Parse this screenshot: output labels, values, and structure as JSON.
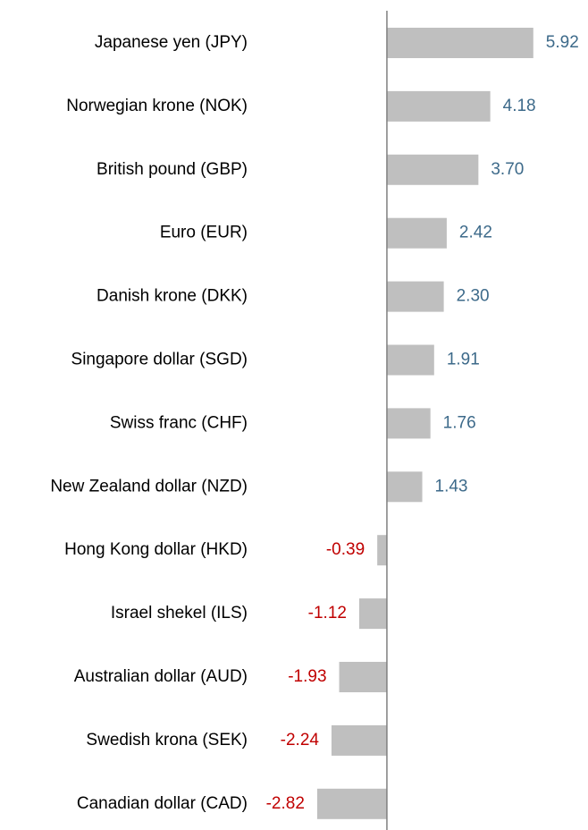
{
  "chart_data": {
    "type": "bar",
    "orientation": "horizontal",
    "categories": [
      "Japanese yen (JPY)",
      "Norwegian krone (NOK)",
      "British pound (GBP)",
      "Euro (EUR)",
      "Danish krone (DKK)",
      "Singapore dollar (SGD)",
      "Swiss franc (CHF)",
      "New Zealand dollar (NZD)",
      "Hong Kong dollar (HKD)",
      "Israel shekel (ILS)",
      "Australian dollar (AUD)",
      "Swedish krona (SEK)",
      "Canadian dollar (CAD)"
    ],
    "values": [
      5.92,
      4.18,
      3.7,
      2.42,
      2.3,
      1.91,
      1.76,
      1.43,
      -0.39,
      -1.12,
      -1.93,
      -2.24,
      -2.82
    ],
    "value_labels": [
      "5.92",
      "4.18",
      "3.70",
      "2.42",
      "2.30",
      "1.91",
      "1.76",
      "1.43",
      "-0.39",
      "-1.12",
      "-1.93",
      "-2.24",
      "-2.82"
    ],
    "color": "#bfbfbf",
    "positive_label_color": "#3d6a8a",
    "negative_label_color": "#c00000",
    "xlim": [
      -2.9,
      6.0
    ]
  }
}
